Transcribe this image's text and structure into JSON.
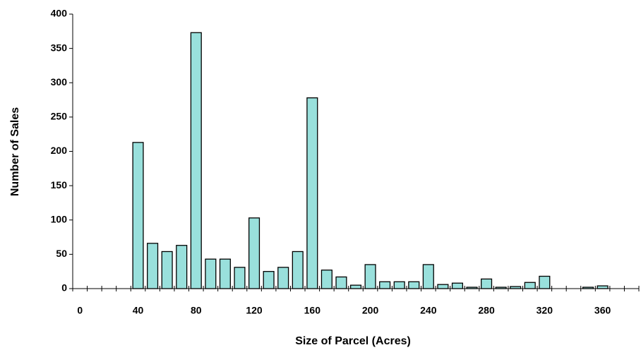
{
  "chart_data": {
    "type": "bar",
    "x_label": "Size of Parcel (Acres)",
    "y_label": "Number of Sales",
    "categories": [
      "0",
      null,
      null,
      null,
      "40",
      null,
      null,
      null,
      "80",
      null,
      null,
      null,
      "120",
      null,
      null,
      null,
      "160",
      null,
      null,
      null,
      "200",
      null,
      null,
      null,
      "240",
      null,
      null,
      null,
      "280",
      null,
      null,
      null,
      "320",
      null,
      null,
      null,
      "360",
      null,
      null
    ],
    "values": [
      0,
      0,
      0,
      0,
      213,
      66,
      54,
      63,
      373,
      43,
      43,
      31,
      103,
      25,
      31,
      54,
      278,
      27,
      17,
      5,
      35,
      10,
      10,
      10,
      35,
      6,
      8,
      2,
      14,
      2,
      3,
      9,
      18,
      0,
      0,
      2,
      4,
      0,
      0
    ],
    "color": "#99e0dc",
    "ylim": [
      0,
      400
    ],
    "yticks": [
      0,
      50,
      100,
      150,
      200,
      250,
      300,
      350,
      400
    ]
  }
}
